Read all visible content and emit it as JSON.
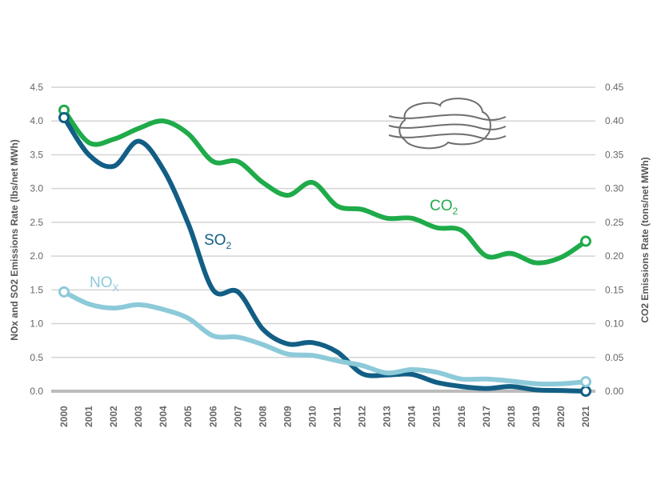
{
  "chart_data": {
    "type": "line",
    "title": "",
    "x": [
      2000,
      2001,
      2002,
      2003,
      2004,
      2005,
      2006,
      2007,
      2008,
      2009,
      2010,
      2011,
      2012,
      2013,
      2014,
      2015,
      2016,
      2017,
      2018,
      2019,
      2020,
      2021
    ],
    "x_tick_labels": [
      "2000",
      "2001",
      "2002",
      "2003",
      "2004",
      "2005",
      "2006",
      "2007",
      "2008",
      "2009",
      "2010",
      "2011",
      "2012",
      "2013",
      "2014",
      "2015",
      "2016",
      "2017",
      "2018",
      "2019",
      "2020",
      "2021"
    ],
    "ylabel_left": "NOx and SO2 Emissions Rate (lbs/net MWh)",
    "ylabel_right": "CO2 Emissions Rate (tons/net MWh)",
    "ylim_left": [
      0,
      4.5
    ],
    "ylim_right": [
      0,
      0.45
    ],
    "y_ticks_left": [
      "0.0",
      "0.5",
      "1.0",
      "1.5",
      "2.0",
      "2.5",
      "3.0",
      "3.5",
      "4.0",
      "4.5"
    ],
    "y_ticks_right": [
      "0.00",
      "0.05",
      "0.10",
      "0.15",
      "0.20",
      "0.25",
      "0.30",
      "0.35",
      "0.40",
      "0.45"
    ],
    "grid": true,
    "icon": "cloud-with-wind-icon",
    "series": [
      {
        "name": "CO",
        "subscript": "2",
        "axis": "right",
        "color": "#1fab4a",
        "values": [
          0.416,
          0.368,
          0.373,
          0.389,
          0.4,
          0.381,
          0.34,
          0.34,
          0.309,
          0.29,
          0.309,
          0.274,
          0.269,
          0.256,
          0.256,
          0.242,
          0.238,
          0.2,
          0.204,
          0.19,
          0.198,
          0.222
        ]
      },
      {
        "name": "SO",
        "subscript": "2",
        "axis": "left",
        "color": "#125e85",
        "values": [
          4.05,
          3.5,
          3.33,
          3.7,
          3.28,
          2.48,
          1.5,
          1.47,
          0.92,
          0.7,
          0.72,
          0.58,
          0.26,
          0.24,
          0.25,
          0.13,
          0.07,
          0.04,
          0.07,
          0.02,
          0.01,
          0.0
        ]
      },
      {
        "name": "NO",
        "subscript": "X",
        "axis": "left",
        "color": "#8ccad9",
        "values": [
          1.47,
          1.29,
          1.23,
          1.28,
          1.21,
          1.08,
          0.82,
          0.8,
          0.69,
          0.55,
          0.53,
          0.45,
          0.38,
          0.27,
          0.32,
          0.28,
          0.18,
          0.18,
          0.15,
          0.11,
          0.11,
          0.14
        ]
      }
    ]
  }
}
